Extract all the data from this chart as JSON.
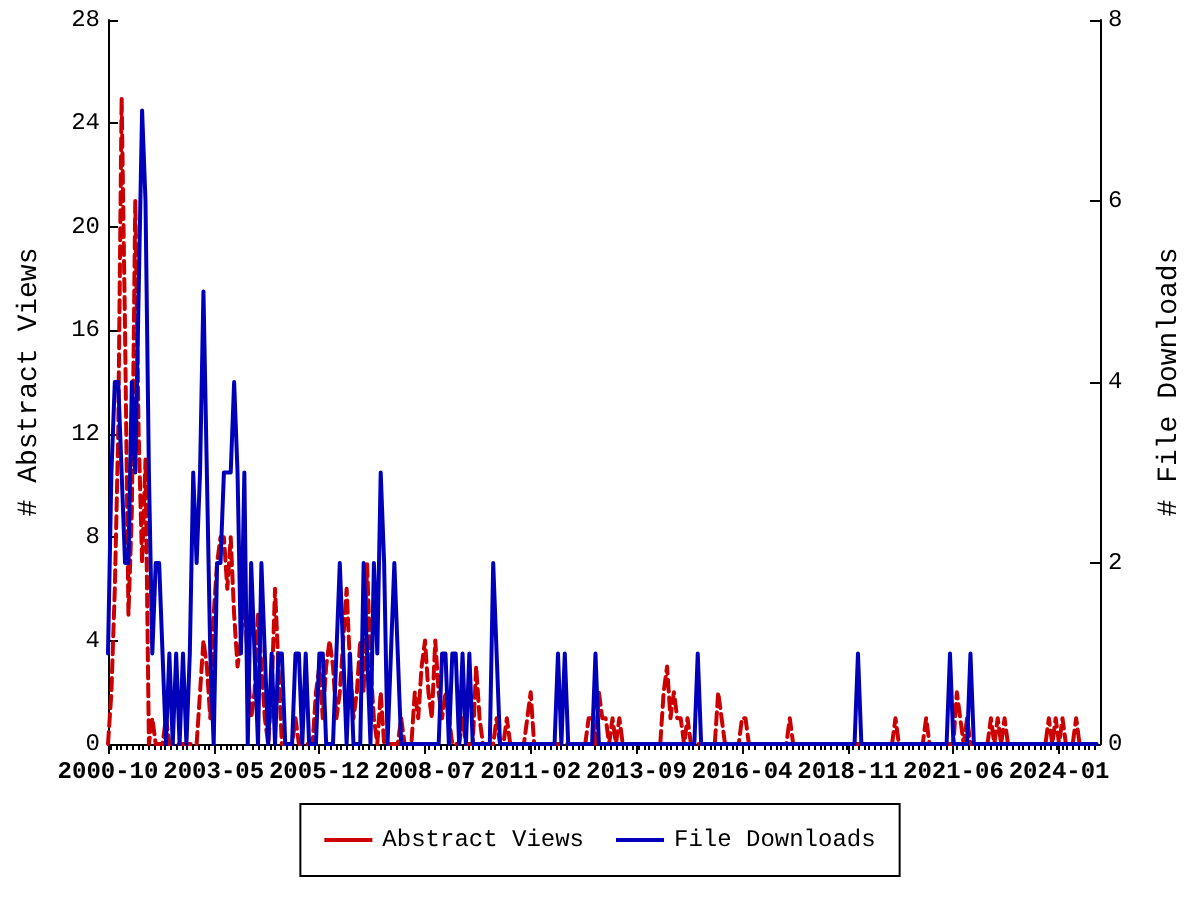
{
  "chart_data": {
    "type": "line",
    "ylabel": "# Abstract Views",
    "y2label": "# File Downloads",
    "xlim": [
      "2000-10",
      "2025-01"
    ],
    "xticks": [
      "2000-10",
      "2003-05",
      "2005-12",
      "2008-07",
      "2011-02",
      "2013-09",
      "2016-04",
      "2018-11",
      "2021-06",
      "2024-01"
    ],
    "ylim": [
      0,
      28
    ],
    "yticks": [
      0,
      4,
      8,
      12,
      16,
      20,
      24,
      28
    ],
    "y2lim": [
      0,
      8
    ],
    "y2ticks": [
      0,
      2,
      4,
      6,
      8
    ],
    "grid": false,
    "legend": "bottom",
    "marker": "none",
    "series": [
      {
        "name": "Abstract Views",
        "color": "#cc0000",
        "line_style": "dashed",
        "x": [
          "2000-10",
          "2000-11",
          "2000-12",
          "2001-01",
          "2001-02",
          "2001-03",
          "2001-04",
          "2001-05",
          "2001-06",
          "2001-07",
          "2001-08",
          "2001-09",
          "2001-10",
          "2001-11",
          "2001-12",
          "2002-02",
          "2002-03",
          "2002-04",
          "2002-12",
          "2003-01",
          "2003-02",
          "2003-03",
          "2003-04",
          "2003-05",
          "2003-06",
          "2003-07",
          "2003-08",
          "2003-09",
          "2003-10",
          "2003-11",
          "2003-12",
          "2004-01",
          "2004-02",
          "2004-03",
          "2004-04",
          "2004-05",
          "2004-06",
          "2004-07",
          "2004-08",
          "2004-09",
          "2004-10",
          "2004-11",
          "2004-12",
          "2005-01",
          "2005-04",
          "2005-05",
          "2005-06",
          "2005-10",
          "2005-11",
          "2005-12",
          "2006-01",
          "2006-02",
          "2006-03",
          "2006-04",
          "2006-05",
          "2006-06",
          "2006-07",
          "2006-08",
          "2006-09",
          "2006-10",
          "2006-11",
          "2006-12",
          "2007-01",
          "2007-02",
          "2007-03",
          "2007-04",
          "2007-05",
          "2007-06",
          "2007-07",
          "2007-11",
          "2007-12",
          "2008-01",
          "2008-03",
          "2008-04",
          "2008-05",
          "2008-06",
          "2008-07",
          "2008-08",
          "2008-09",
          "2008-10",
          "2008-11",
          "2008-12",
          "2009-01",
          "2009-02",
          "2009-03",
          "2009-05",
          "2009-06",
          "2009-07",
          "2009-09",
          "2009-10",
          "2009-11",
          "2009-12",
          "2010-03",
          "2010-04",
          "2010-05",
          "2010-06",
          "2010-07",
          "2010-08",
          "2010-12",
          "2011-01",
          "2011-02",
          "2011-03",
          "2012-06",
          "2012-07",
          "2012-08",
          "2012-09",
          "2012-10",
          "2012-11",
          "2012-12",
          "2013-01",
          "2013-02",
          "2013-03",
          "2013-04",
          "2013-05",
          "2014-04",
          "2014-05",
          "2014-06",
          "2014-07",
          "2014-08",
          "2014-09",
          "2014-10",
          "2014-11",
          "2014-12",
          "2015-01",
          "2015-08",
          "2015-09",
          "2015-10",
          "2015-11",
          "2016-03",
          "2016-04",
          "2016-05",
          "2016-06",
          "2017-05",
          "2017-06",
          "2017-07",
          "2019-12",
          "2020-01",
          "2020-02",
          "2020-09",
          "2020-10",
          "2020-11",
          "2021-06",
          "2021-07",
          "2021-08",
          "2021-09",
          "2021-10",
          "2021-11",
          "2022-04",
          "2022-05",
          "2022-06",
          "2022-07",
          "2022-08",
          "2022-09",
          "2022-10",
          "2023-09",
          "2023-10",
          "2023-11",
          "2023-12",
          "2024-01",
          "2024-02",
          "2024-03",
          "2024-05",
          "2024-06",
          "2024-07",
          "2024-12"
        ],
        "values": [
          0,
          2,
          6,
          12,
          25,
          16,
          5,
          9,
          21,
          12,
          7,
          11,
          0,
          1,
          0,
          0,
          1,
          0,
          0,
          2,
          4,
          3,
          1,
          5,
          7,
          8,
          8,
          6,
          8,
          5,
          3,
          4,
          6,
          3,
          1,
          2,
          5,
          3,
          1,
          0,
          2,
          6,
          3,
          0,
          0,
          1,
          0,
          0,
          2,
          3,
          1,
          3,
          4,
          3,
          1,
          2,
          4,
          6,
          3,
          1,
          2,
          4,
          2,
          7,
          3,
          1,
          0,
          2,
          0,
          0,
          1,
          0,
          0,
          2,
          1,
          3,
          4,
          2,
          1,
          4,
          2,
          1,
          2,
          1,
          0,
          0,
          1,
          0,
          0,
          3,
          1,
          0,
          0,
          1,
          0,
          0,
          1,
          0,
          0,
          1,
          2,
          0,
          0,
          1,
          1,
          0,
          2,
          1,
          1,
          0,
          1,
          0,
          1,
          0,
          0,
          2,
          3,
          1,
          2,
          1,
          1,
          0,
          1,
          0,
          0,
          2,
          1,
          0,
          0,
          1,
          1,
          0,
          0,
          1,
          0,
          0,
          1,
          0,
          0,
          1,
          0,
          0,
          2,
          1,
          0,
          1,
          0,
          0,
          1,
          0,
          1,
          0,
          1,
          0,
          0,
          1,
          0,
          1,
          0,
          1,
          0,
          0,
          1,
          0,
          0
        ]
      },
      {
        "name": "File Downloads",
        "color": "#0000bb",
        "line_style": "solid",
        "axis": "y2",
        "x": [
          "2000-10",
          "2000-11",
          "2000-12",
          "2001-01",
          "2001-02",
          "2001-03",
          "2001-04",
          "2001-05",
          "2001-06",
          "2001-07",
          "2001-08",
          "2001-09",
          "2001-10",
          "2001-11",
          "2001-12",
          "2002-01",
          "2002-02",
          "2002-03",
          "2002-04",
          "2002-05",
          "2002-06",
          "2002-07",
          "2002-08",
          "2002-09",
          "2002-10",
          "2002-11",
          "2002-12",
          "2003-01",
          "2003-02",
          "2003-03",
          "2003-04",
          "2003-05",
          "2003-06",
          "2003-07",
          "2003-08",
          "2003-09",
          "2003-10",
          "2003-11",
          "2003-12",
          "2004-01",
          "2004-02",
          "2004-03",
          "2004-04",
          "2004-05",
          "2004-06",
          "2004-07",
          "2004-08",
          "2004-09",
          "2004-10",
          "2004-11",
          "2004-12",
          "2005-01",
          "2005-02",
          "2005-04",
          "2005-05",
          "2005-06",
          "2005-07",
          "2005-08",
          "2005-09",
          "2005-11",
          "2005-12",
          "2006-01",
          "2006-02",
          "2006-04",
          "2006-05",
          "2006-06",
          "2006-07",
          "2006-08",
          "2006-09",
          "2006-10",
          "2006-12",
          "2007-01",
          "2007-02",
          "2007-03",
          "2007-04",
          "2007-05",
          "2007-06",
          "2007-07",
          "2007-08",
          "2007-09",
          "2007-10",
          "2007-11",
          "2007-12",
          "2008-11",
          "2008-12",
          "2009-01",
          "2009-02",
          "2009-03",
          "2009-04",
          "2009-05",
          "2009-06",
          "2009-07",
          "2009-08",
          "2009-09",
          "2010-02",
          "2010-03",
          "2010-04",
          "2010-05",
          "2011-09",
          "2011-10",
          "2011-11",
          "2011-12",
          "2012-01",
          "2012-08",
          "2012-09",
          "2012-10",
          "2015-02",
          "2015-03",
          "2015-04",
          "2019-01",
          "2019-02",
          "2019-03",
          "2021-04",
          "2021-05",
          "2021-06",
          "2021-10",
          "2021-11",
          "2021-12",
          "2024-12"
        ],
        "values": [
          1,
          3,
          4,
          4,
          3,
          2,
          2,
          4,
          3,
          5,
          7,
          6,
          3,
          1,
          2,
          2,
          1,
          0,
          1,
          0,
          1,
          0,
          1,
          0,
          1,
          3,
          2,
          3,
          5,
          3,
          1,
          0,
          2,
          2,
          3,
          3,
          3,
          4,
          3,
          1,
          3,
          0,
          2,
          1,
          0,
          2,
          1,
          0,
          1,
          0,
          1,
          1,
          0,
          0,
          1,
          1,
          0,
          1,
          0,
          0,
          1,
          1,
          0,
          0,
          1,
          2,
          1,
          0,
          1,
          0,
          0,
          2,
          1,
          0,
          2,
          1,
          3,
          2,
          0,
          1,
          2,
          1,
          0,
          0,
          1,
          1,
          0,
          1,
          1,
          0,
          1,
          0,
          1,
          0,
          0,
          2,
          1,
          0,
          0,
          1,
          0,
          1,
          0,
          0,
          1,
          0,
          0,
          1,
          0,
          0,
          1,
          0,
          0,
          1,
          0,
          0,
          1,
          0,
          0
        ]
      }
    ]
  }
}
